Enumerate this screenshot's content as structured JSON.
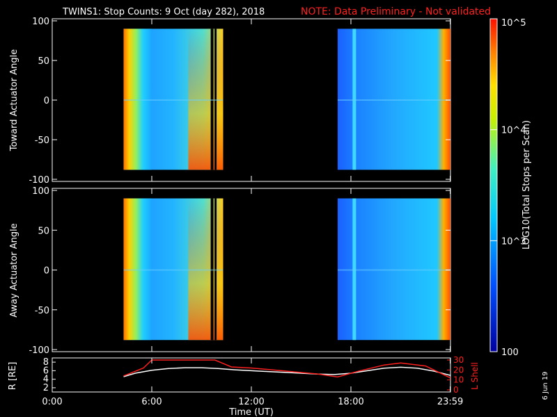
{
  "header": {
    "title": "TWINS1: Stop Counts:  9 Oct (day 282), 2018",
    "note": "NOTE: Data Preliminary - Not validated",
    "note_color": "#ff2020"
  },
  "footer": {
    "date_stamp": "6 Jun 19"
  },
  "colorbar": {
    "label": "LOG10(Total Stops per Scan)",
    "ticks": [
      "10^5",
      "10^4",
      "10^3",
      "100"
    ],
    "range": [
      100,
      100000
    ]
  },
  "chart_data": [
    {
      "type": "heatmap",
      "ylabel": "Toward Actuator Angle",
      "ylim": [
        -100,
        100
      ],
      "yticks": [
        "100",
        "50",
        "0",
        "-50",
        "-100"
      ],
      "xlim_hours": [
        0,
        24
      ],
      "data_blocks_hours": [
        [
          4.3,
          10.3
        ],
        [
          17.2,
          24.0
        ]
      ],
      "angle_range": [
        -88,
        90
      ]
    },
    {
      "type": "heatmap",
      "ylabel": "Away Actuator Angle",
      "ylim": [
        -100,
        100
      ],
      "yticks": [
        "100",
        "50",
        "0",
        "-50",
        "-100"
      ],
      "xlim_hours": [
        0,
        24
      ],
      "data_blocks_hours": [
        [
          4.3,
          10.3
        ],
        [
          17.2,
          24.0
        ]
      ],
      "angle_range": [
        -88,
        90
      ]
    },
    {
      "type": "line",
      "xlabel": "Time (UT)",
      "xticks": [
        "0:00",
        "6:00",
        "12:00",
        "18:00",
        "23:59"
      ],
      "ylabel_left": "R [RE]",
      "ylabel_right": "L Shell",
      "yticks_left": [
        "8",
        "6",
        "4",
        "2"
      ],
      "yticks_right": [
        "30",
        "20",
        "10",
        "0"
      ],
      "ylim_left": [
        1.5,
        8.5
      ],
      "ylim_right": [
        0,
        30
      ],
      "series": [
        {
          "name": "R [RE]",
          "color": "#ffffff",
          "x": [
            4.3,
            5,
            6,
            7,
            8,
            9,
            10,
            11,
            12,
            13,
            14,
            15,
            16,
            17,
            18,
            19,
            20,
            21,
            22,
            23,
            24
          ],
          "y": [
            4.6,
            5.4,
            6.1,
            6.5,
            6.7,
            6.7,
            6.5,
            6.2,
            6.0,
            5.8,
            5.6,
            5.4,
            5.2,
            5.1,
            5.4,
            6.0,
            6.6,
            6.8,
            6.6,
            5.9,
            4.9
          ]
        },
        {
          "name": "L Shell",
          "color": "#ff2020",
          "x": [
            4.3,
            5.5,
            6.0,
            6.2,
            9.8,
            10.1,
            10.8,
            12,
            14,
            16,
            17.2,
            18.5,
            20,
            21,
            22.5,
            24
          ],
          "y": [
            14,
            22,
            30,
            30,
            30,
            28,
            23,
            22,
            19,
            16,
            13,
            19,
            25,
            27,
            24,
            12
          ]
        }
      ]
    }
  ]
}
